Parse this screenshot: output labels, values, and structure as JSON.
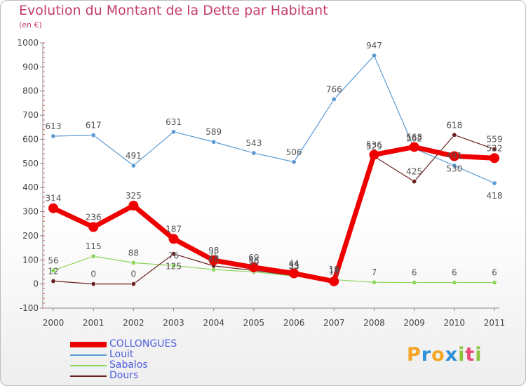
{
  "chart_data": {
    "type": "line",
    "title": "Evolution du Montant de la Dette par Habitant",
    "subtitle": "(en €)",
    "xlabel": "",
    "ylabel": "",
    "categories": [
      "2000",
      "2001",
      "2002",
      "2003",
      "2004",
      "2005",
      "2006",
      "2007",
      "2008",
      "2009",
      "2010",
      "2011"
    ],
    "ylim": [
      -100,
      1000
    ],
    "yticks": [
      -100,
      0,
      100,
      200,
      300,
      400,
      500,
      600,
      700,
      800,
      900,
      1000
    ],
    "grid": false,
    "legend_position": "bottom-left",
    "series": [
      {
        "name": "COLLONGUES",
        "color": "#ee0000",
        "values": [
          314,
          236,
          325,
          187,
          98,
          69,
          44,
          11,
          536,
          568,
          530,
          522
        ],
        "label_offsets": [
          "up",
          "up",
          "up",
          "up",
          "up",
          "up",
          "up",
          "up",
          "up",
          "up",
          "down",
          "up"
        ]
      },
      {
        "name": "Louit",
        "color": "#5b9bd5",
        "values": [
          613,
          617,
          491,
          631,
          589,
          543,
          506,
          766,
          947,
          562,
          491,
          418
        ],
        "label_offsets": [
          "up",
          "up",
          "up",
          "up",
          "up",
          "up",
          "up",
          "up",
          "up",
          "up",
          "up",
          "down"
        ]
      },
      {
        "name": "Sabalos",
        "color": "#8cd65a",
        "values": [
          56,
          115,
          88,
          76,
          60,
          50,
          33,
          18,
          7,
          6,
          6,
          6
        ],
        "label_offsets": [
          "up",
          "up",
          "up",
          "up",
          "up",
          "up",
          "up",
          "up",
          "up",
          "up",
          "up",
          "up"
        ]
      },
      {
        "name": "Dours",
        "color": "#6b1f1f",
        "values": [
          12,
          0,
          0,
          125,
          75,
          56,
          35,
          19,
          529,
          425,
          618,
          559
        ],
        "label_offsets": [
          "up",
          "up",
          "up",
          "down",
          "up",
          "up",
          "up",
          "up",
          "up",
          "up",
          "up",
          "up"
        ]
      }
    ]
  },
  "branding": {
    "letters": [
      "P",
      "r",
      "o",
      "x",
      "i",
      "t",
      "i"
    ],
    "colors": [
      "#f5a623",
      "#2f8fd8",
      "#f5a623",
      "#2f8fd8",
      "#8cc63f",
      "#e94e77",
      "#8cc63f"
    ]
  }
}
